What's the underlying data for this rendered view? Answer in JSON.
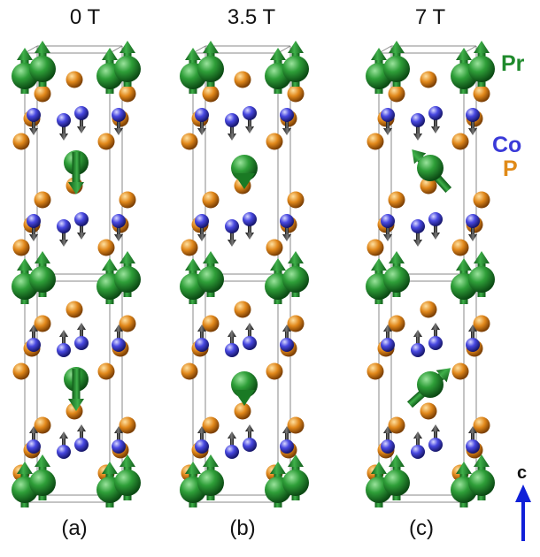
{
  "fields": [
    "0 T",
    "3.5 T",
    "7 T"
  ],
  "panels": [
    "(a)",
    "(b)",
    "(c)"
  ],
  "legend": {
    "pr": "Pr",
    "co": "Co",
    "p": "P"
  },
  "axis_label": "c",
  "colors": {
    "pr": "#1f8a2c",
    "co": "#3a3ad8",
    "p": "#e08a18",
    "axis": "#1020d8",
    "bond": "#b8b8b8",
    "cell": "#8a8a8a"
  }
}
